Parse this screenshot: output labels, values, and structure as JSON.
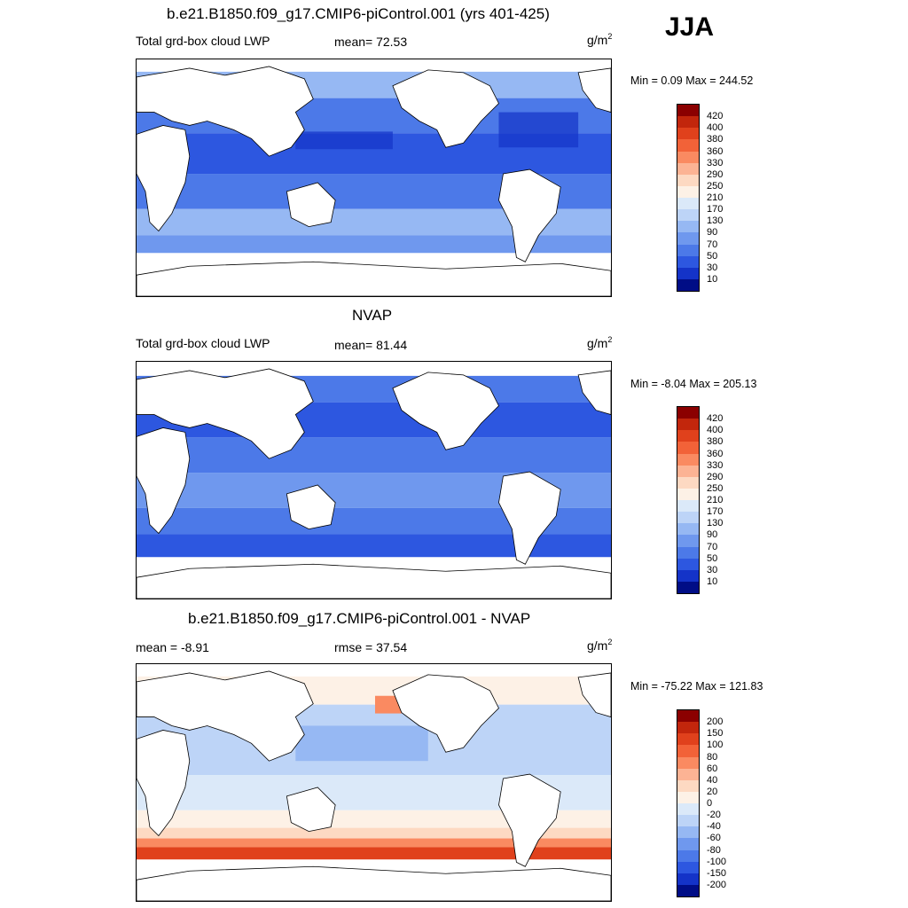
{
  "season": "JJA",
  "units_prefix": "g/m",
  "units_exp": "2",
  "panels": [
    {
      "title": "b.e21.B1850.f09_g17.CMIP6-piControl.001 (yrs 401-425)",
      "left_label": "Total grd-box cloud LWP",
      "center_label": "mean=  72.53",
      "minmax": "Min =   0.09 Max = 244.52",
      "colorbar_ticks": [
        "420",
        "400",
        "380",
        "360",
        "330",
        "290",
        "250",
        "210",
        "170",
        "130",
        "90",
        "70",
        "50",
        "30",
        "10"
      ],
      "colors": [
        "#8b0000",
        "#c2260c",
        "#e0411c",
        "#f26238",
        "#fa8a61",
        "#fcb394",
        "#fdd9c2",
        "#fdf1e6",
        "#dbe9f9",
        "#bdd4f7",
        "#96b8f3",
        "#6f98ee",
        "#4c79e8",
        "#2d57e0",
        "#1433c8",
        "#000d86"
      ]
    },
    {
      "title": "NVAP",
      "left_label": "Total grd-box cloud LWP",
      "center_label": "mean=  81.44",
      "minmax": "Min =  -8.04 Max = 205.13",
      "colorbar_ticks": [
        "420",
        "400",
        "380",
        "360",
        "330",
        "290",
        "250",
        "210",
        "170",
        "130",
        "90",
        "70",
        "50",
        "30",
        "10"
      ],
      "colors": [
        "#8b0000",
        "#c2260c",
        "#e0411c",
        "#f26238",
        "#fa8a61",
        "#fcb394",
        "#fdd9c2",
        "#fdf1e6",
        "#dbe9f9",
        "#bdd4f7",
        "#96b8f3",
        "#6f98ee",
        "#4c79e8",
        "#2d57e0",
        "#1433c8",
        "#000d86"
      ]
    },
    {
      "title": "b.e21.B1850.f09_g17.CMIP6-piControl.001 - NVAP",
      "left_label": "mean =  -8.91",
      "center_label": "rmse =  37.54",
      "minmax": "Min = -75.22 Max = 121.83",
      "colorbar_ticks": [
        "200",
        "150",
        "100",
        "80",
        "60",
        "40",
        "20",
        "0",
        "-20",
        "-40",
        "-60",
        "-80",
        "-100",
        "-150",
        "-200"
      ],
      "colors": [
        "#8b0000",
        "#c2260c",
        "#e0411c",
        "#f26238",
        "#fa8a61",
        "#fcb394",
        "#fdd9c2",
        "#fdf1e6",
        "#dbe9f9",
        "#bdd4f7",
        "#96b8f3",
        "#6f98ee",
        "#4c79e8",
        "#2d57e0",
        "#1433c8",
        "#000d86"
      ]
    }
  ]
}
